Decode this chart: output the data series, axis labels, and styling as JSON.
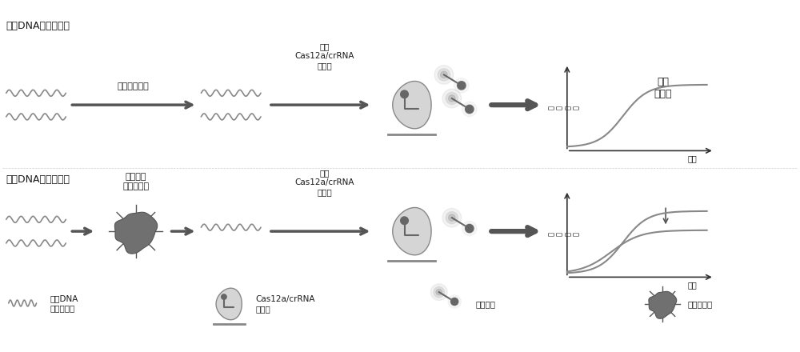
{
  "bg_color": "#ffffff",
  "text_color": "#1a1a1a",
  "arrow_color": "#555555",
  "wave_color": "#888888",
  "curve_color": "#888888",
  "blob_color": "#666666",
  "cas_body_color": "#d8d8d8",
  "probe_glow_color": "#aaaaaa",
  "line_color": "#333333",
  "title1": "单链DNA核酸适配体",
  "label_no_molecule": "没有小分子时",
  "label_add_cas1": "加入\nCas12a/crRNA\n复合物",
  "label_molecule_bind": "小分子与\n适配体结合",
  "label_add_cas2": "加入\nCas12a/crRNA\n复合物",
  "label_positive": "阳性\n对照组",
  "label_time1": "时间",
  "label_time2": "时间",
  "label_fluor1": "荧\n光\n信\n号",
  "label_fluor2": "荧\n光\n信\n号",
  "legend_ssdna": "单链DNA\n核酸适配体",
  "legend_cas": "Cas12a/crRNA\n复合物",
  "legend_probe": "荧光探针",
  "legend_target": "靶标小分子",
  "title2": "单链DNA核酸适配体"
}
